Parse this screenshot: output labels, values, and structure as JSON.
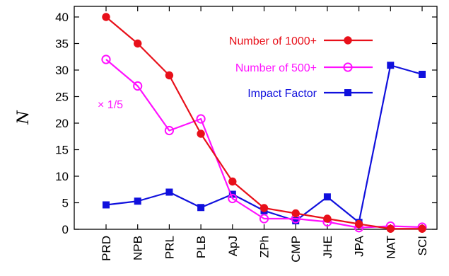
{
  "chart_data": {
    "type": "line",
    "ylabel": "N",
    "ylim": [
      0,
      42
    ],
    "yticks": [
      0,
      5,
      10,
      15,
      20,
      25,
      30,
      35,
      40
    ],
    "categories": [
      "PRD",
      "NPB",
      "PRL",
      "PLB",
      "ApJ",
      "ZPh",
      "CMP",
      "JHE",
      "JPA",
      "NAT",
      "SCI"
    ],
    "grid": false,
    "legend_position": "top-right",
    "annotation": "× 1/5",
    "series": [
      {
        "name": "Number of 1000+",
        "color": "#e8101a",
        "marker": "filled-circle",
        "values": [
          40,
          35,
          29,
          18,
          9,
          4,
          3,
          2,
          1,
          0.1,
          0.1
        ]
      },
      {
        "name": "Number of 500+",
        "color": "#ff11ff",
        "marker": "open-circle",
        "values": [
          32,
          27,
          18.6,
          20.8,
          5.8,
          2,
          2,
          1.4,
          0.3,
          0.6,
          0.4
        ]
      },
      {
        "name": "Impact Factor",
        "color": "#1010dd",
        "marker": "filled-square",
        "values": [
          4.6,
          5.3,
          7.0,
          4.1,
          6.6,
          3.5,
          1.6,
          6.1,
          1.3,
          30.9,
          29.2
        ]
      }
    ]
  }
}
